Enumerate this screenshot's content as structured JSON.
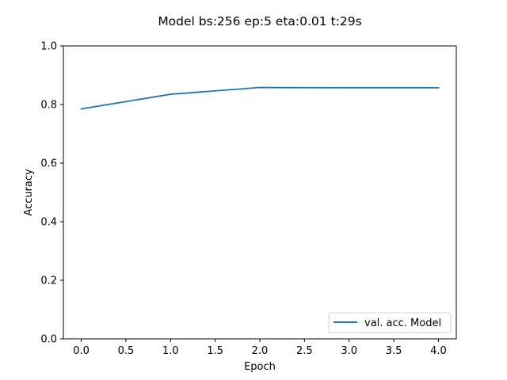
{
  "chart_data": {
    "type": "line",
    "title": "Model bs:256 ep:5 eta:0.01 t:29s",
    "xlabel": "Epoch",
    "ylabel": "Accuracy",
    "xlim": [
      -0.2,
      4.2
    ],
    "ylim": [
      0.0,
      1.0
    ],
    "xticks": [
      "0.0",
      "0.5",
      "1.0",
      "1.5",
      "2.0",
      "2.5",
      "3.0",
      "3.5",
      "4.0"
    ],
    "yticks": [
      "0.0",
      "0.2",
      "0.4",
      "0.6",
      "0.8",
      "1.0"
    ],
    "grid": false,
    "legend_position": "lower-right",
    "series": [
      {
        "name": "val. acc. Model",
        "color": "#1f77b4",
        "x": [
          0,
          1,
          2,
          3,
          4
        ],
        "values": [
          0.785,
          0.835,
          0.858,
          0.857,
          0.857
        ]
      }
    ]
  }
}
